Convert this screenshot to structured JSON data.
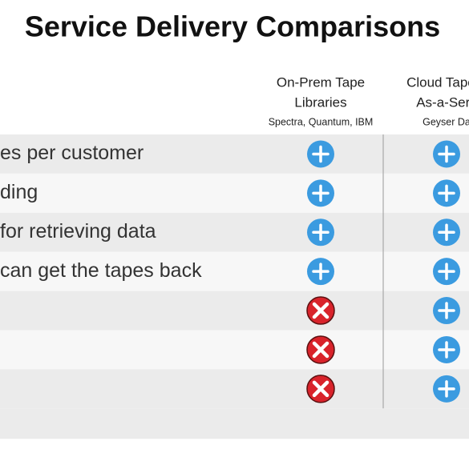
{
  "title": "Service Delivery Comparisons",
  "columns": [
    {
      "title_lines": [
        "On-Prem Tape",
        "Libraries"
      ],
      "vendors": "Spectra, Quantum, IBM"
    },
    {
      "title_lines": [
        "Cloud Tape L",
        "As-a-Serv"
      ],
      "vendors": "Geyser Da"
    }
  ],
  "rows": [
    {
      "label": "es per customer",
      "cells": [
        "plus",
        "plus"
      ]
    },
    {
      "label": "ding",
      "cells": [
        "plus",
        "plus"
      ]
    },
    {
      "label": "for retrieving data",
      "cells": [
        "plus",
        "plus"
      ]
    },
    {
      "label": "can get the tapes back",
      "cells": [
        "plus",
        "plus"
      ]
    },
    {
      "cells": [
        "x",
        "plus"
      ]
    },
    {
      "cells": [
        "x",
        "plus"
      ]
    },
    {
      "cells": [
        "x",
        "plus"
      ]
    }
  ]
}
